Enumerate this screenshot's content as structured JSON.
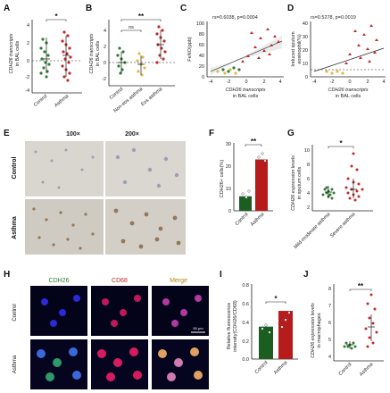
{
  "panels": {
    "A": {
      "label": "A",
      "ylabel": "CDH26 transcripts",
      "ylabel2": "in BAL cells",
      "yticks": [
        "4",
        "2",
        "0",
        "-2",
        "-4"
      ],
      "categories": [
        "Control",
        "Asthma"
      ],
      "sig": "*"
    },
    "B": {
      "label": "B",
      "ylabel": "CDH26 transcripts",
      "ylabel2": "in BAL cells",
      "yticks": [
        "4",
        "2",
        "0",
        "-2"
      ],
      "categories": [
        "Control",
        "Non-eos asthma",
        "Eos asthma"
      ],
      "sig_ns": "ns",
      "sig": "**"
    },
    "C": {
      "label": "C",
      "stat": "rs=0.6038, p=0.0004",
      "ylabel": "FeNO(ppb)",
      "xlabel": "CDH26 transcripts",
      "xlabel2": "in BAL cells",
      "yticks": [
        "100",
        "80",
        "60",
        "40",
        "20",
        "0"
      ],
      "xticks": [
        "-4",
        "-2",
        "0",
        "2",
        "4"
      ]
    },
    "D": {
      "label": "D",
      "stat": "rs=0.5278, p=0.0019",
      "ylabel": "Induced sputum",
      "ylabel2": "eosinophil(%)",
      "xlabel": "CDH26 transcripts",
      "xlabel2": "in BAL cells",
      "yticks": [
        "40",
        "30",
        "20",
        "10",
        "0"
      ],
      "xticks": [
        "-4",
        "-2",
        "0",
        "2",
        "4"
      ]
    },
    "E": {
      "label": "E",
      "mag1": "100×",
      "mag2": "200×",
      "row1": "Control",
      "row2": "Asthma"
    },
    "F": {
      "label": "F",
      "ylabel": "CDH26+ cells(%)",
      "yticks": [
        "30",
        "20",
        "10",
        "0"
      ],
      "categories": [
        "Control",
        "Asthma"
      ],
      "values": [
        6.5,
        23
      ],
      "sig": "**"
    },
    "G": {
      "label": "G",
      "ylabel": "CDH26 expression levels",
      "ylabel2": "in sputum cells",
      "yticks": [
        "10",
        "8",
        "6",
        "4",
        "2"
      ],
      "categories": [
        "Mild-moderate asthma",
        "Severe asthma"
      ],
      "sig": "*"
    },
    "H": {
      "label": "H",
      "col1": "CDH26",
      "col2": "CD68",
      "col3": "Merge",
      "row1": "Control",
      "row2": "Asthma",
      "scale": "50 μm"
    },
    "I": {
      "label": "I",
      "ylabel": "Relative fluorescence",
      "ylabel2": "intensity(CDH26/CD68)",
      "yticks": [
        "0.8",
        "0.6",
        "0.4",
        "0.2",
        "0.0"
      ],
      "categories": [
        "Control",
        "Asthma"
      ],
      "values": [
        0.35,
        0.52
      ],
      "sig": "*"
    },
    "J": {
      "label": "J",
      "ylabel": "CDH26 expression levels",
      "ylabel2": "in macrophages",
      "yticks": [
        "8",
        "7",
        "6",
        "5",
        "4"
      ],
      "categories": [
        "Control",
        "Asthma"
      ],
      "sig": "**"
    }
  },
  "colors": {
    "control": "#2e7d32",
    "asthma": "#c62828",
    "noneos": "#e0b84a",
    "dark_green": "#1b5e20",
    "dark_red": "#b71c1c"
  },
  "chart_data": [
    {
      "panel": "F",
      "type": "bar",
      "categories": [
        "Control",
        "Asthma"
      ],
      "values": [
        6.5,
        23
      ],
      "ylabel": "CDH26+ cells(%)",
      "ylim": [
        0,
        30
      ]
    },
    {
      "panel": "I",
      "type": "bar",
      "categories": [
        "Control",
        "Asthma"
      ],
      "values": [
        0.35,
        0.52
      ],
      "ylabel": "Relative fluorescence intensity(CDH26/CD68)",
      "ylim": [
        0,
        0.8
      ]
    }
  ]
}
